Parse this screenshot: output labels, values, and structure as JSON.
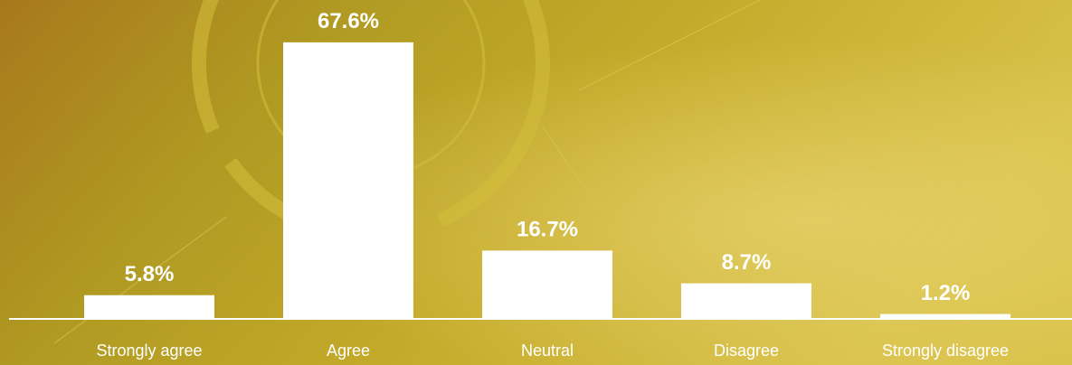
{
  "chart_data": {
    "type": "bar",
    "categories": [
      "Strongly agree",
      "Agree",
      "Neutral",
      "Disagree",
      "Strongly disagree"
    ],
    "values": [
      5.8,
      67.6,
      16.7,
      8.7,
      1.2
    ],
    "value_labels": [
      "5.8%",
      "67.6%",
      "16.7%",
      "8.7%",
      "1.2%"
    ],
    "color": "#ffffff",
    "ylim": [
      0,
      70
    ]
  }
}
